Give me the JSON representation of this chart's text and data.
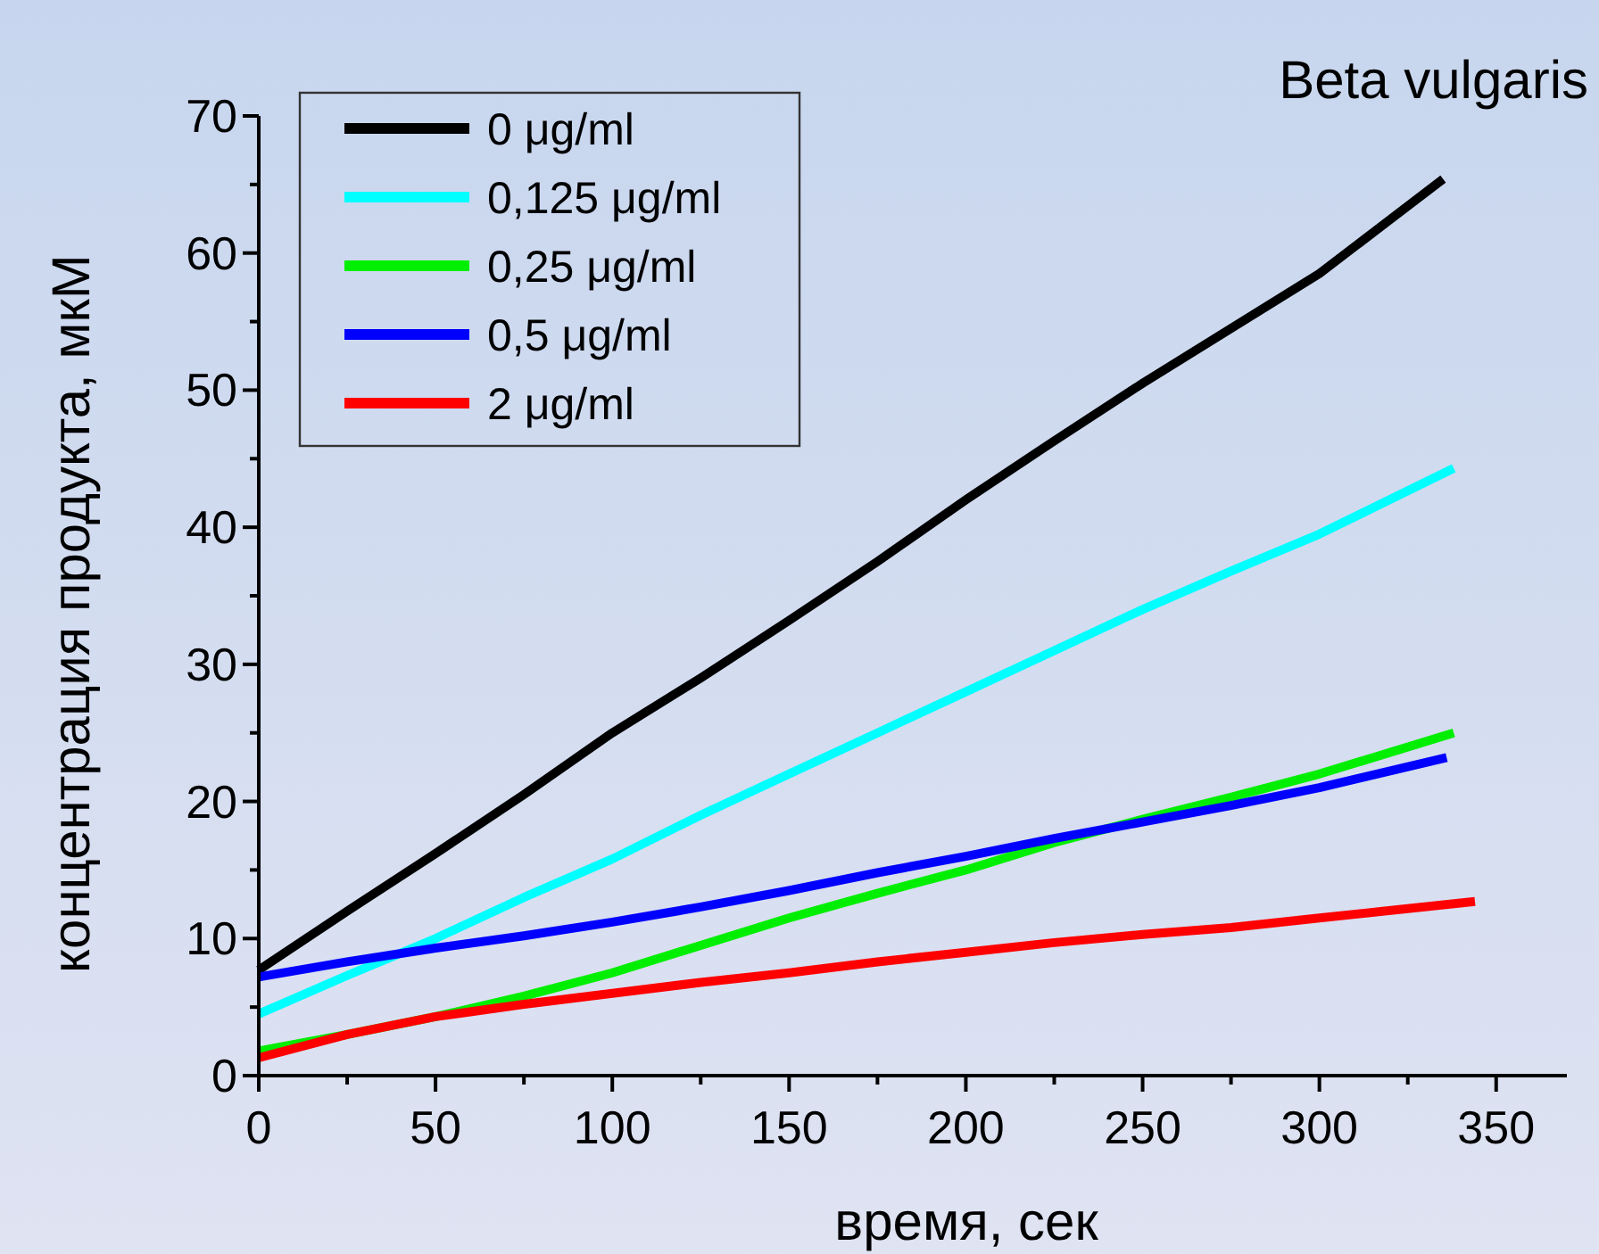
{
  "chart_data": {
    "type": "line",
    "title": "Beta vulgaris",
    "xlabel": "время, сек",
    "ylabel": "концентрация продукта, мкМ",
    "xlim": [
      0,
      370
    ],
    "ylim": [
      0,
      70
    ],
    "xticks": [
      0,
      {
        "value": 25,
        "label": null
      },
      50,
      {
        "value": 75,
        "label": null
      },
      100,
      {
        "value": 125,
        "label": null
      },
      150,
      {
        "value": 175,
        "label": null
      },
      200,
      {
        "value": 225,
        "label": null
      },
      250,
      {
        "value": 275,
        "label": null
      },
      300,
      {
        "value": 325,
        "label": null
      },
      350
    ],
    "yticks": [
      0,
      {
        "value": 5,
        "label": null
      },
      10,
      {
        "value": 15,
        "label": null
      },
      20,
      {
        "value": 25,
        "label": null
      },
      30,
      {
        "value": 35,
        "label": null
      },
      40,
      {
        "value": 45,
        "label": null
      },
      50,
      {
        "value": 55,
        "label": null
      },
      60,
      {
        "value": 65,
        "label": null
      },
      70
    ],
    "grid": false,
    "legend": "top left",
    "marker": "none",
    "line_style": "solid",
    "series": [
      {
        "name": "0 μg/ml",
        "color": "#000000",
        "x": [
          0,
          25,
          50,
          75,
          100,
          125,
          150,
          175,
          200,
          225,
          250,
          275,
          300,
          335
        ],
        "values": [
          7.7,
          12,
          16.2,
          20.5,
          25,
          29,
          33.2,
          37.5,
          42,
          46.3,
          50.5,
          54.5,
          58.5,
          65.4
        ]
      },
      {
        "name": "0,125 μg/ml",
        "color": "#00ffff",
        "x": [
          0,
          25,
          50,
          75,
          100,
          125,
          150,
          175,
          200,
          225,
          250,
          275,
          300,
          338
        ],
        "values": [
          4.5,
          7.3,
          10,
          13,
          15.8,
          19,
          22,
          25,
          28,
          31,
          34,
          36.8,
          39.5,
          44.3
        ]
      },
      {
        "name": "0,25 μg/ml",
        "color": "#00ee00",
        "x": [
          0,
          25,
          50,
          75,
          100,
          125,
          150,
          175,
          200,
          225,
          250,
          275,
          300,
          338
        ],
        "values": [
          1.8,
          3,
          4.3,
          5.8,
          7.5,
          9.5,
          11.5,
          13.3,
          15,
          17,
          18.7,
          20.3,
          22,
          25
        ]
      },
      {
        "name": "0,5 μg/ml",
        "color": "#0000ff",
        "x": [
          0,
          25,
          50,
          75,
          100,
          125,
          150,
          175,
          200,
          225,
          250,
          275,
          300,
          336
        ],
        "values": [
          7.2,
          8.3,
          9.3,
          10.2,
          11.2,
          12.3,
          13.5,
          14.8,
          16,
          17.3,
          18.5,
          19.7,
          21,
          23.2
        ]
      },
      {
        "name": "2 μg/ml",
        "color": "#ff0000",
        "x": [
          0,
          25,
          50,
          75,
          100,
          125,
          150,
          175,
          200,
          225,
          250,
          275,
          300,
          344
        ],
        "values": [
          1.3,
          3,
          4.3,
          5.2,
          6,
          6.8,
          7.5,
          8.3,
          9,
          9.7,
          10.3,
          10.8,
          11.5,
          12.7
        ]
      }
    ]
  }
}
